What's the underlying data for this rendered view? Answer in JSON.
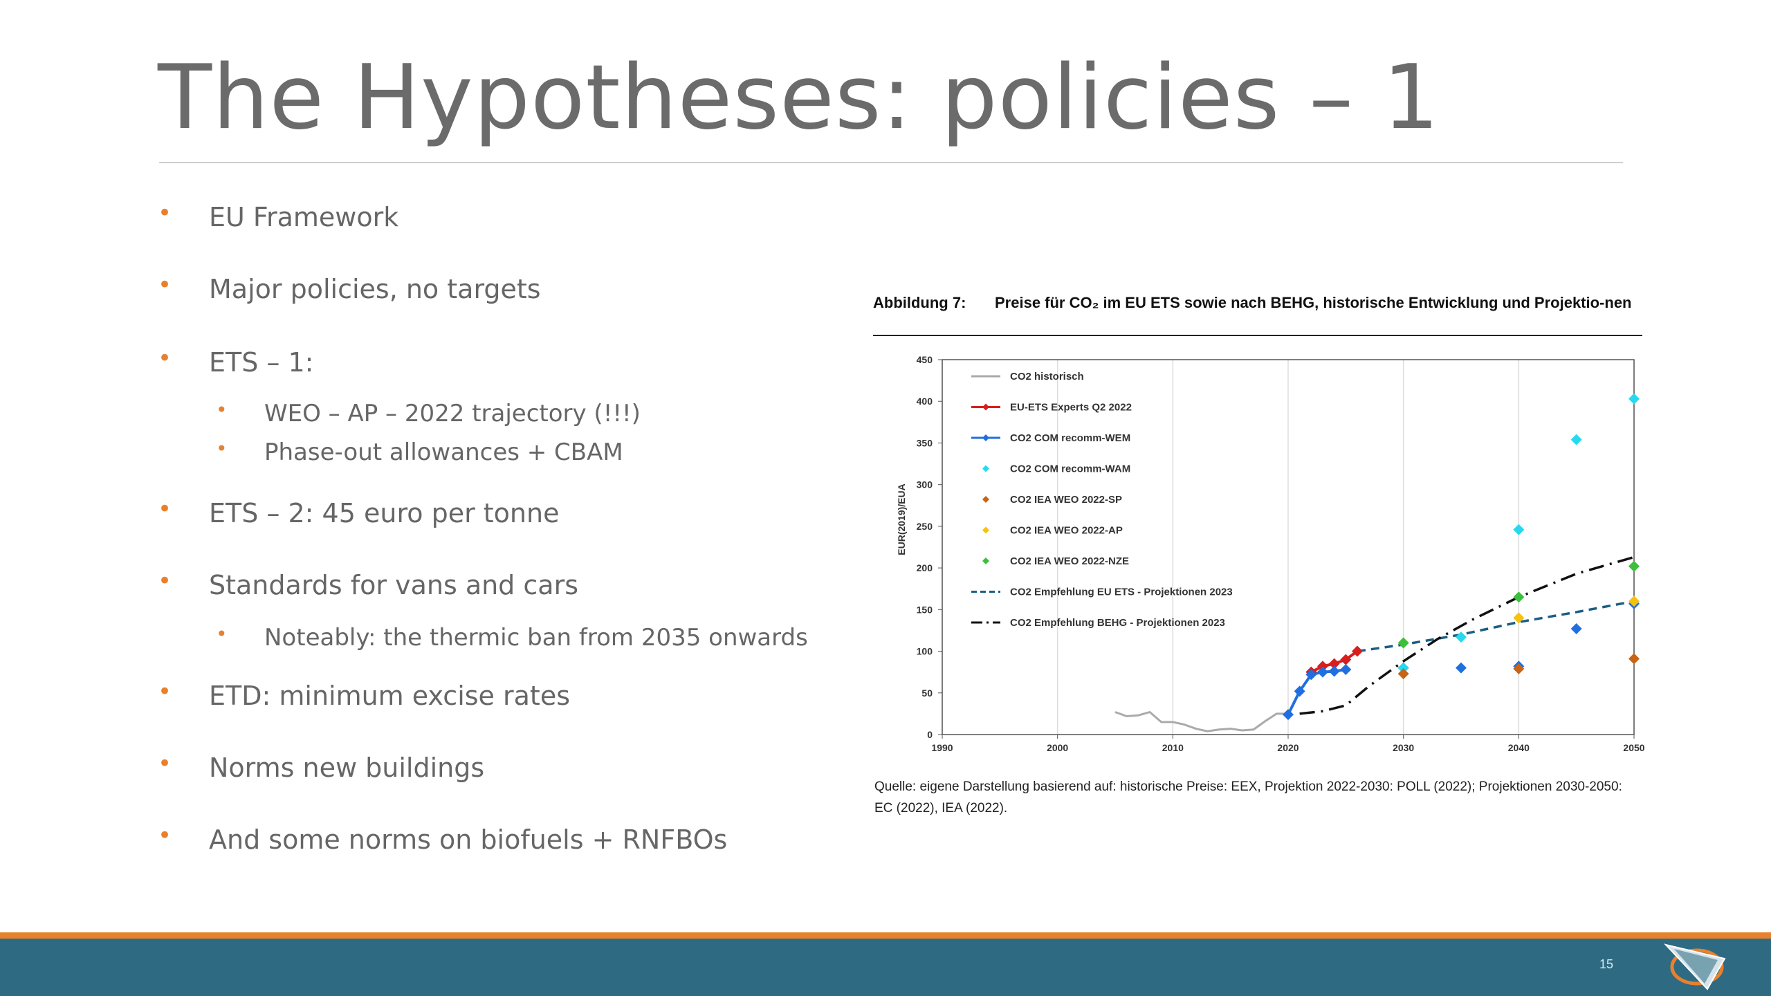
{
  "slide": {
    "title": "The Hypotheses: policies – 1",
    "page_number": "15",
    "accent_color": "#e8812e",
    "footer_color": "#2e6b82"
  },
  "bullets": [
    {
      "text": "EU Framework",
      "level": 1
    },
    {
      "text": "Major policies, no targets",
      "level": 1
    },
    {
      "text": "ETS – 1:",
      "level": 1
    },
    {
      "text": "WEO – AP – 2022 trajectory (!!!)",
      "level": 2
    },
    {
      "text": "Phase-out allowances + CBAM",
      "level": 2
    },
    {
      "text": "ETS – 2:  45 euro per tonne",
      "level": 1
    },
    {
      "text": "Standards for vans and cars",
      "level": 1
    },
    {
      "text": "Noteably: the thermic ban from 2035 onwards",
      "level": 2
    },
    {
      "text": "ETD: minimum excise rates",
      "level": 1
    },
    {
      "text": "Norms new buildings",
      "level": 1
    },
    {
      "text": "And some norms on biofuels + RNFBOs",
      "level": 1
    }
  ],
  "bullet_glyph": "•",
  "figure": {
    "label": "Abbildung 7:",
    "caption": "Preise für CO₂ im EU ETS sowie nach BEHG, historische Entwicklung und Projektio-nen",
    "source": "Quelle: eigene Darstellung basierend auf: historische Preise: EEX, Projektion 2022-2030: POLL (2022); Projektionen 2030-2050: EC (2022), IEA (2022)."
  },
  "chart_data": {
    "type": "line",
    "ylabel": "EUR(2019)/EUA",
    "xlabel": "",
    "xlim": [
      1990,
      2050
    ],
    "ylim": [
      0,
      450
    ],
    "x_ticks": [
      1990,
      2000,
      2010,
      2020,
      2030,
      2040,
      2050
    ],
    "y_ticks": [
      0,
      50,
      100,
      150,
      200,
      250,
      300,
      350,
      400,
      450
    ],
    "grid": true,
    "legend_position": "top-left",
    "series": [
      {
        "name": "CO2 historisch",
        "style": "line",
        "color": "#aaaaaa",
        "points": [
          [
            2005,
            27
          ],
          [
            2006,
            22
          ],
          [
            2007,
            23
          ],
          [
            2008,
            27
          ],
          [
            2009,
            15
          ],
          [
            2010,
            15
          ],
          [
            2011,
            12
          ],
          [
            2012,
            7
          ],
          [
            2013,
            4
          ],
          [
            2014,
            6
          ],
          [
            2015,
            7
          ],
          [
            2016,
            5
          ],
          [
            2017,
            6
          ],
          [
            2018,
            16
          ],
          [
            2019,
            25
          ],
          [
            2020,
            25
          ]
        ]
      },
      {
        "name": "EU-ETS Experts Q2 2022",
        "style": "line-marker",
        "color": "#d91e1e",
        "points": [
          [
            2022,
            75
          ],
          [
            2023,
            82
          ],
          [
            2024,
            85
          ],
          [
            2025,
            90
          ],
          [
            2026,
            100
          ]
        ]
      },
      {
        "name": "CO2 COM recomm-WEM",
        "style": "line-marker",
        "color": "#1f6fe0",
        "points": [
          [
            2020,
            24
          ],
          [
            2021,
            52
          ],
          [
            2022,
            72
          ],
          [
            2023,
            75
          ],
          [
            2024,
            76
          ],
          [
            2025,
            78
          ],
          [
            2030,
            80
          ],
          [
            2035,
            80
          ],
          [
            2040,
            82
          ],
          [
            2045,
            127
          ],
          [
            2050,
            157
          ]
        ]
      },
      {
        "name": "CO2 COM recomm-WAM",
        "style": "marker",
        "color": "#27d9ef",
        "points": [
          [
            2030,
            80
          ],
          [
            2035,
            117
          ],
          [
            2040,
            246
          ],
          [
            2045,
            354
          ],
          [
            2050,
            403
          ]
        ]
      },
      {
        "name": "CO2 IEA WEO 2022-SP",
        "style": "marker",
        "color": "#c86414",
        "points": [
          [
            2030,
            73
          ],
          [
            2040,
            79
          ],
          [
            2050,
            91
          ]
        ]
      },
      {
        "name": "CO2 IEA WEO 2022-AP",
        "style": "marker",
        "color": "#f5c210",
        "points": [
          [
            2030,
            110
          ],
          [
            2040,
            140
          ],
          [
            2050,
            160
          ]
        ]
      },
      {
        "name": "CO2 IEA WEO 2022-NZE",
        "style": "marker",
        "color": "#3cbf3c",
        "points": [
          [
            2030,
            110
          ],
          [
            2040,
            165
          ],
          [
            2050,
            202
          ]
        ]
      },
      {
        "name": "CO2 Empfehlung EU ETS - Projektionen 2023",
        "style": "dashed",
        "color": "#1a5e85",
        "points": [
          [
            2026,
            100
          ],
          [
            2030,
            108
          ],
          [
            2035,
            120
          ],
          [
            2040,
            135
          ],
          [
            2045,
            147
          ],
          [
            2050,
            160
          ]
        ]
      },
      {
        "name": "CO2 Empfehlung BEHG - Projektionen 2023",
        "style": "dashdot",
        "color": "#111111",
        "points": [
          [
            2021,
            25
          ],
          [
            2023,
            28
          ],
          [
            2025,
            35
          ],
          [
            2027,
            58
          ],
          [
            2030,
            88
          ],
          [
            2033,
            115
          ],
          [
            2036,
            138
          ],
          [
            2040,
            165
          ],
          [
            2045,
            193
          ],
          [
            2050,
            213
          ]
        ]
      }
    ]
  }
}
